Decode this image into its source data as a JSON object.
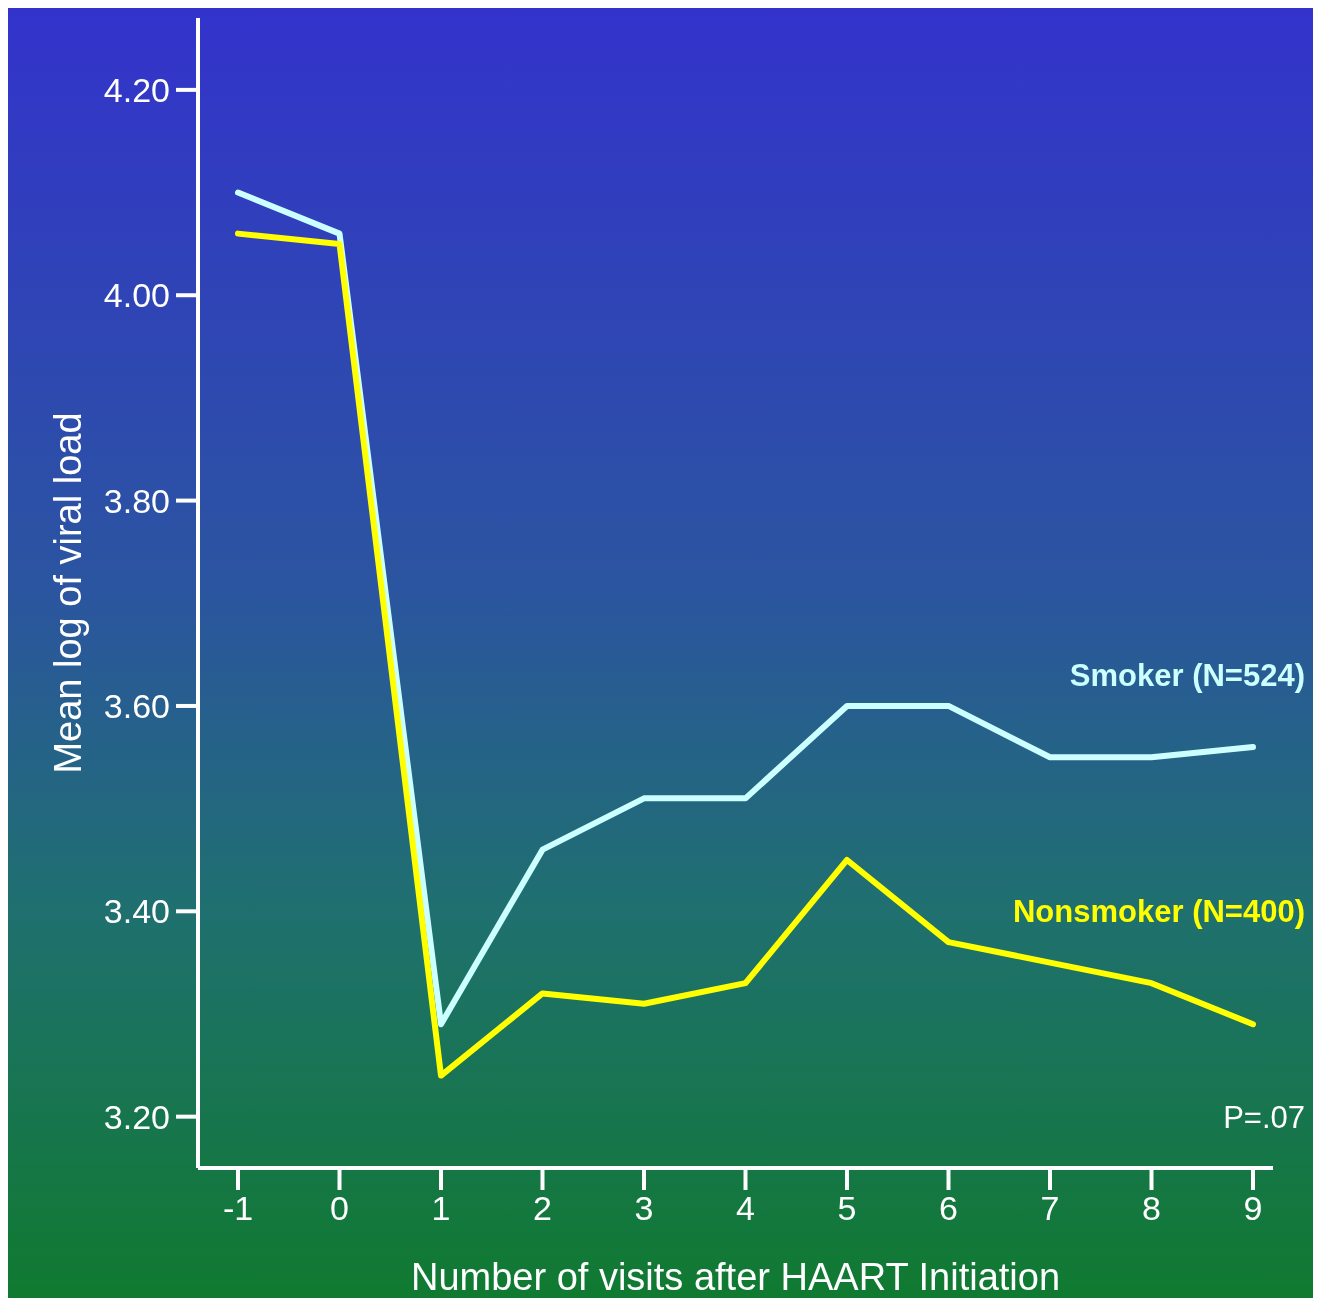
{
  "chart_data": {
    "type": "line",
    "xlabel": "Number of visits after HAART Initiation",
    "ylabel": "Mean log of viral load",
    "categories": [
      "-1",
      "0",
      "1",
      "2",
      "3",
      "4",
      "5",
      "6",
      "7",
      "8",
      "9"
    ],
    "series": [
      {
        "name": "Smoker (N=524)",
        "color": "#ccffff",
        "values": [
          4.1,
          4.06,
          3.29,
          3.46,
          3.51,
          3.51,
          3.6,
          3.6,
          3.55,
          3.55,
          3.56
        ]
      },
      {
        "name": "Nonsmoker (N=400)",
        "color": "#ffff00",
        "values": [
          4.06,
          4.05,
          3.24,
          3.32,
          3.31,
          3.33,
          3.45,
          3.37,
          3.35,
          3.33,
          3.29
        ]
      }
    ],
    "ylim": [
      3.15,
      4.27
    ],
    "yticks": [
      {
        "value": 3.2,
        "label": "3.20"
      },
      {
        "value": 3.4,
        "label": "3.40"
      },
      {
        "value": 3.6,
        "label": "3.60"
      },
      {
        "value": 3.8,
        "label": "3.80"
      },
      {
        "value": 4.0,
        "label": "4.00"
      },
      {
        "value": 4.2,
        "label": "4.20"
      }
    ],
    "annotations": [
      "P=.07"
    ],
    "legend": false,
    "grid": false,
    "marker": "none",
    "line_style": "solid"
  }
}
